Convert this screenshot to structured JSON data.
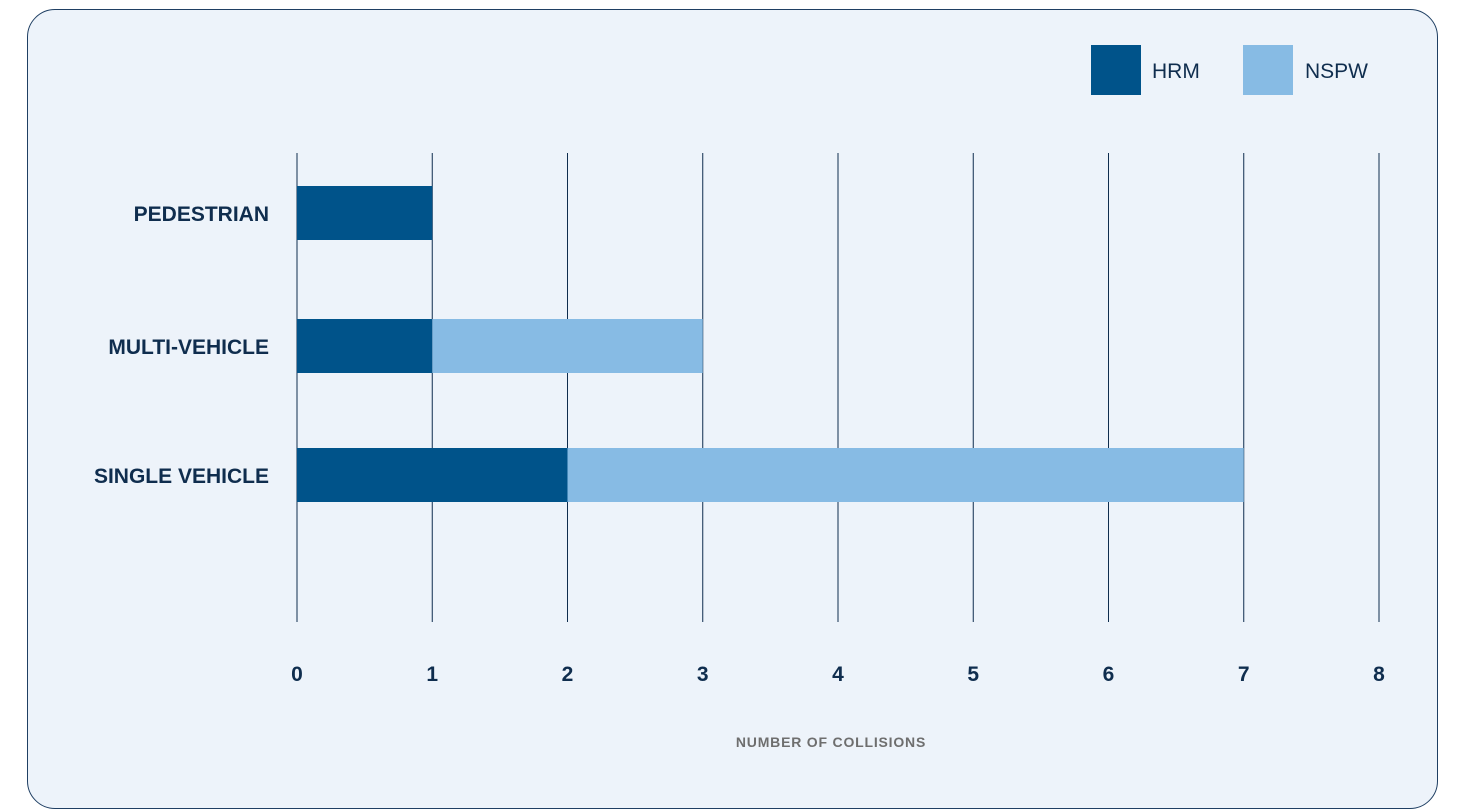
{
  "chart_data": {
    "type": "bar",
    "orientation": "horizontal",
    "stacked": true,
    "categories": [
      "PEDESTRIAN",
      "MULTI-VEHICLE",
      "SINGLE VEHICLE"
    ],
    "series": [
      {
        "name": "HRM",
        "values": [
          1,
          1,
          2
        ],
        "color": "#00538a"
      },
      {
        "name": "NSPW",
        "values": [
          0,
          2,
          5
        ],
        "color": "#87bbe4"
      }
    ],
    "xlim": [
      0,
      8
    ],
    "xticks": [
      "0",
      "1",
      "2",
      "3",
      "4",
      "5",
      "6",
      "7",
      "8"
    ],
    "xlabel": "NUMBER OF COLLISIONS",
    "ylabel": "",
    "title": "",
    "grid": "vertical",
    "legend": "top-right"
  },
  "colors": {
    "background": "#edf3fa",
    "border": "#1f3f63",
    "text": "#0f2d4e",
    "grid": "#0f2d4e"
  }
}
